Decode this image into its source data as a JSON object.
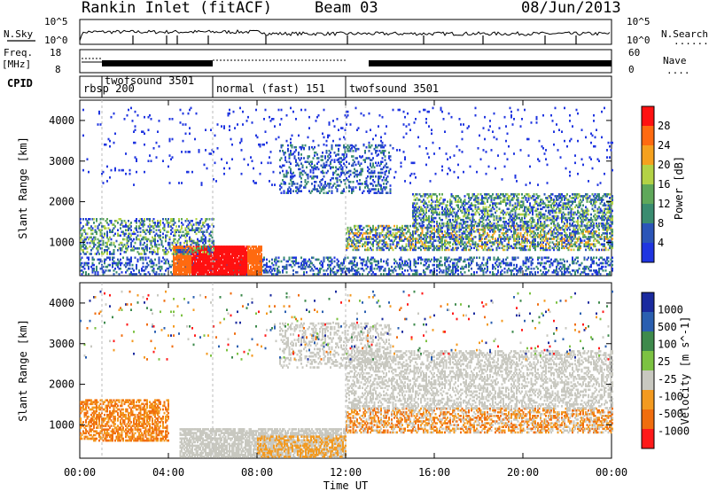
{
  "header": {
    "station": "Rankin Inlet (fitACF)",
    "beam": "Beam 03",
    "date": "08/Jun/2013"
  },
  "labels": {
    "nsky": "N.Sky",
    "nsearch": "N.Search",
    "freq": "Freq.",
    "mhz": "[MHz]",
    "nave": "Nave",
    "cpid": "CPID",
    "dots": "......",
    "dots_short": "...."
  },
  "noise_axis": {
    "left_ticks": [
      "10^5",
      "10^0"
    ],
    "right_ticks": [
      "10^5",
      "10^0"
    ]
  },
  "freq_axis": {
    "left_ticks": [
      "18",
      "8"
    ],
    "right_ticks": [
      "60",
      "0"
    ]
  },
  "cpid_segments": [
    {
      "label": "rbsp 200",
      "start_hour": 0.0,
      "end_hour": 1.0
    },
    {
      "label": "twofsound 3501",
      "start_hour": 1.0,
      "end_hour": 6.0
    },
    {
      "label": "normal (fast) 151",
      "start_hour": 6.0,
      "end_hour": 12.0
    },
    {
      "label": "twofsound 3501",
      "start_hour": 12.0,
      "end_hour": 24.0
    }
  ],
  "time_axis": {
    "label": "Time UT",
    "ticks": [
      "00:00",
      "04:00",
      "08:00",
      "12:00",
      "16:00",
      "20:00",
      "00:00"
    ],
    "tick_hours": [
      0,
      4,
      8,
      12,
      16,
      20,
      24
    ]
  },
  "colors": {
    "blue": "#2a3fd8",
    "dark_blue": "#1d2fa8",
    "teal": "#3a9a78",
    "green": "#5ec73c",
    "yellow_green": "#b7d23c",
    "orange": "#f08a1c",
    "red": "#ff1a1a",
    "grey": "#c8c8c0"
  },
  "chart_data": [
    {
      "type": "heatmap",
      "title": "",
      "xlabel": "Time UT",
      "ylabel": "Slant Range [km]",
      "xlim": [
        0,
        24
      ],
      "ylim": [
        180,
        4500
      ],
      "yticks": [
        1000,
        2000,
        3000,
        4000
      ],
      "colorbar": {
        "label": "Power [dB]",
        "ticks": [
          "28",
          "24",
          "20",
          "16",
          "12",
          "8",
          "4"
        ],
        "range": [
          0,
          30
        ],
        "colors": [
          "#1f35e0",
          "#2b55b8",
          "#3a8c70",
          "#5fa85a",
          "#b3d245",
          "#f5a11e",
          "#ff6a10",
          "#ff1111"
        ]
      },
      "regions": [
        {
          "desc": "near-range scatter",
          "x": [
            0,
            24
          ],
          "y": [
            180,
            700
          ],
          "value": 6
        },
        {
          "desc": "high power patch",
          "x": [
            4.2,
            8.2
          ],
          "y": [
            180,
            900
          ],
          "value": 28
        },
        {
          "desc": "afternoon band",
          "x": [
            12,
            24
          ],
          "y": [
            800,
            1400
          ],
          "value": 12
        },
        {
          "desc": "evening band",
          "x": [
            15,
            24
          ],
          "y": [
            1400,
            2200
          ],
          "value": 10
        }
      ]
    },
    {
      "type": "heatmap",
      "title": "",
      "xlabel": "Time UT",
      "ylabel": "Slant Range [km]",
      "xlim": [
        0,
        24
      ],
      "ylim": [
        180,
        4500
      ],
      "yticks": [
        1000,
        2000,
        3000,
        4000
      ],
      "colorbar": {
        "label": "Velocity [m s^-1]",
        "ticks": [
          "1000",
          "500",
          "100",
          "25",
          "-25",
          "-100",
          "-500",
          "-1000"
        ],
        "range": [
          -1000,
          1000
        ],
        "colors": [
          "#ff1a1a",
          "#f06d0e",
          "#f39a20",
          "#c8c8c0",
          "#7cc242",
          "#3e8a4c",
          "#2a5fb0",
          "#1a2a9e"
        ]
      },
      "regions": [
        {
          "desc": "early range",
          "x": [
            0,
            4
          ],
          "y": [
            600,
            1500
          ],
          "value": -200
        },
        {
          "desc": "ground scatter",
          "x": [
            6,
            12
          ],
          "y": [
            180,
            900
          ],
          "value": 0
        },
        {
          "desc": "afternoon band",
          "x": [
            12,
            24
          ],
          "y": [
            800,
            1400
          ],
          "value": -150
        },
        {
          "desc": "evening grey",
          "x": [
            12,
            24
          ],
          "y": [
            1400,
            2800
          ],
          "value": 0
        }
      ]
    }
  ]
}
